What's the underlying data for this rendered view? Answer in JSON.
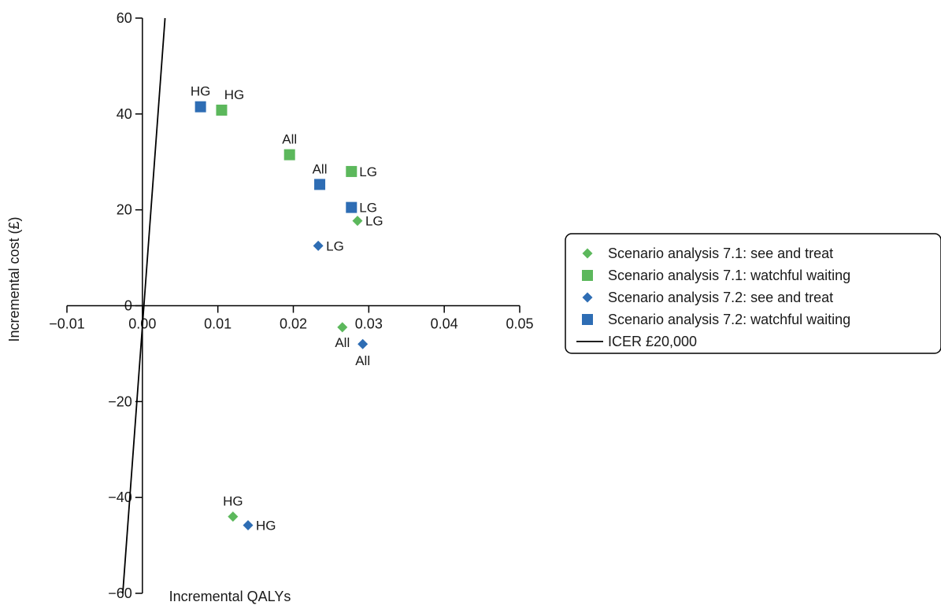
{
  "chart_data": {
    "type": "scatter",
    "xlabel": "Incremental QALYs",
    "ylabel": "Incremental cost (£)",
    "xlim": [
      -0.01,
      0.05
    ],
    "ylim": [
      -60,
      60
    ],
    "x_ticks": [
      -0.01,
      0.0,
      0.01,
      0.02,
      0.03,
      0.04,
      0.05
    ],
    "x_tick_labels": [
      "−0.01",
      "0.00",
      "0.01",
      "0.02",
      "0.03",
      "0.04",
      "0.05"
    ],
    "y_ticks": [
      -60,
      -40,
      -20,
      0,
      20,
      40,
      60
    ],
    "y_tick_labels": [
      "−60",
      "−40",
      "−20",
      "0",
      "20",
      "40",
      "60"
    ],
    "grid": false,
    "legend_position": "right",
    "series": [
      {
        "name": "Scenario analysis 7.1: see and treat",
        "marker": "diamond",
        "color": "#5cb85c",
        "points": [
          {
            "x": 0.0285,
            "y": 17.7,
            "label": "LG",
            "label_pos": "right"
          },
          {
            "x": 0.0265,
            "y": -4.5,
            "label": "All",
            "label_pos": "below-left"
          },
          {
            "x": 0.012,
            "y": -44.0,
            "label": "HG",
            "label_pos": "above"
          }
        ]
      },
      {
        "name": "Scenario analysis 7.1: watchful waiting",
        "marker": "square",
        "color": "#5cb85c",
        "points": [
          {
            "x": 0.0105,
            "y": 40.8,
            "label": "HG",
            "label_pos": "above-right"
          },
          {
            "x": 0.0195,
            "y": 31.5,
            "label": "All",
            "label_pos": "above"
          },
          {
            "x": 0.0277,
            "y": 28.0,
            "label": "LG",
            "label_pos": "right"
          }
        ]
      },
      {
        "name": "Scenario analysis 7.2: see and treat",
        "marker": "diamond",
        "color": "#2e6db4",
        "points": [
          {
            "x": 0.0233,
            "y": 12.5,
            "label": "LG",
            "label_pos": "right"
          },
          {
            "x": 0.0292,
            "y": -8.0,
            "label": "All",
            "label_pos": "below"
          },
          {
            "x": 0.014,
            "y": -45.8,
            "label": "HG",
            "label_pos": "right"
          }
        ]
      },
      {
        "name": "Scenario analysis 7.2: watchful waiting",
        "marker": "square",
        "color": "#2e6db4",
        "points": [
          {
            "x": 0.0077,
            "y": 41.5,
            "label": "HG",
            "label_pos": "above"
          },
          {
            "x": 0.0235,
            "y": 25.3,
            "label": "All",
            "label_pos": "above"
          },
          {
            "x": 0.0277,
            "y": 20.5,
            "label": "LG",
            "label_pos": "right"
          }
        ]
      },
      {
        "name": "ICER £20,000",
        "marker": "line",
        "color": "#000000",
        "line": {
          "x": [
            -0.0026,
            0.003
          ],
          "y": [
            -60,
            60
          ]
        }
      }
    ]
  }
}
